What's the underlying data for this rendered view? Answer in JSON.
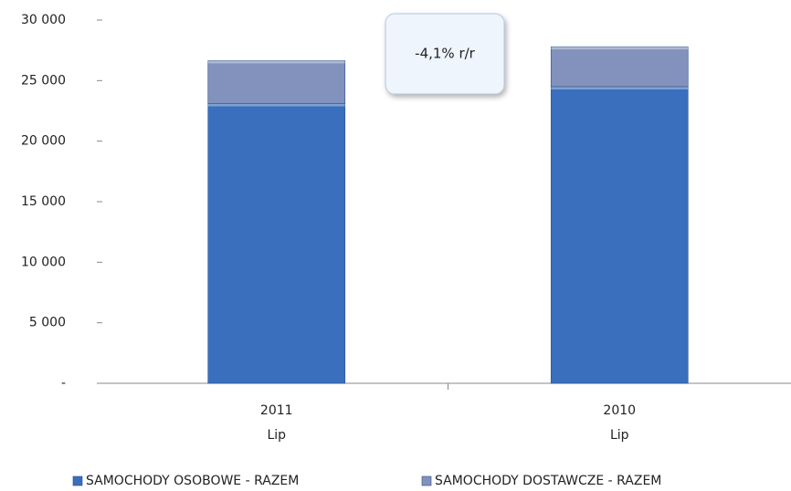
{
  "chart_data": {
    "type": "stacked_bar",
    "categories": [
      "2011",
      "2010"
    ],
    "category_sublabels": [
      "Lip",
      "Lip"
    ],
    "series": [
      {
        "name": "SAMOCHODY OSOBOWE - RAZEM",
        "color": "#3a6fbd",
        "values": [
          23100,
          24500
        ]
      },
      {
        "name": "SAMOCHODY DOSTAWCZE - RAZEM",
        "color": "#8292bd",
        "values": [
          3550,
          3300
        ]
      }
    ],
    "ylim": [
      0,
      30000
    ],
    "yticks": [
      {
        "value": 0,
        "label": "-"
      },
      {
        "value": 5000,
        "label": "5 000"
      },
      {
        "value": 10000,
        "label": "10 000"
      },
      {
        "value": 15000,
        "label": "15 000"
      },
      {
        "value": 20000,
        "label": "20 000"
      },
      {
        "value": 25000,
        "label": "25 000"
      },
      {
        "value": 30000,
        "label": "30 000"
      }
    ],
    "annotation": "-4,1% r/r",
    "legend": "bottom",
    "grid": false
  }
}
